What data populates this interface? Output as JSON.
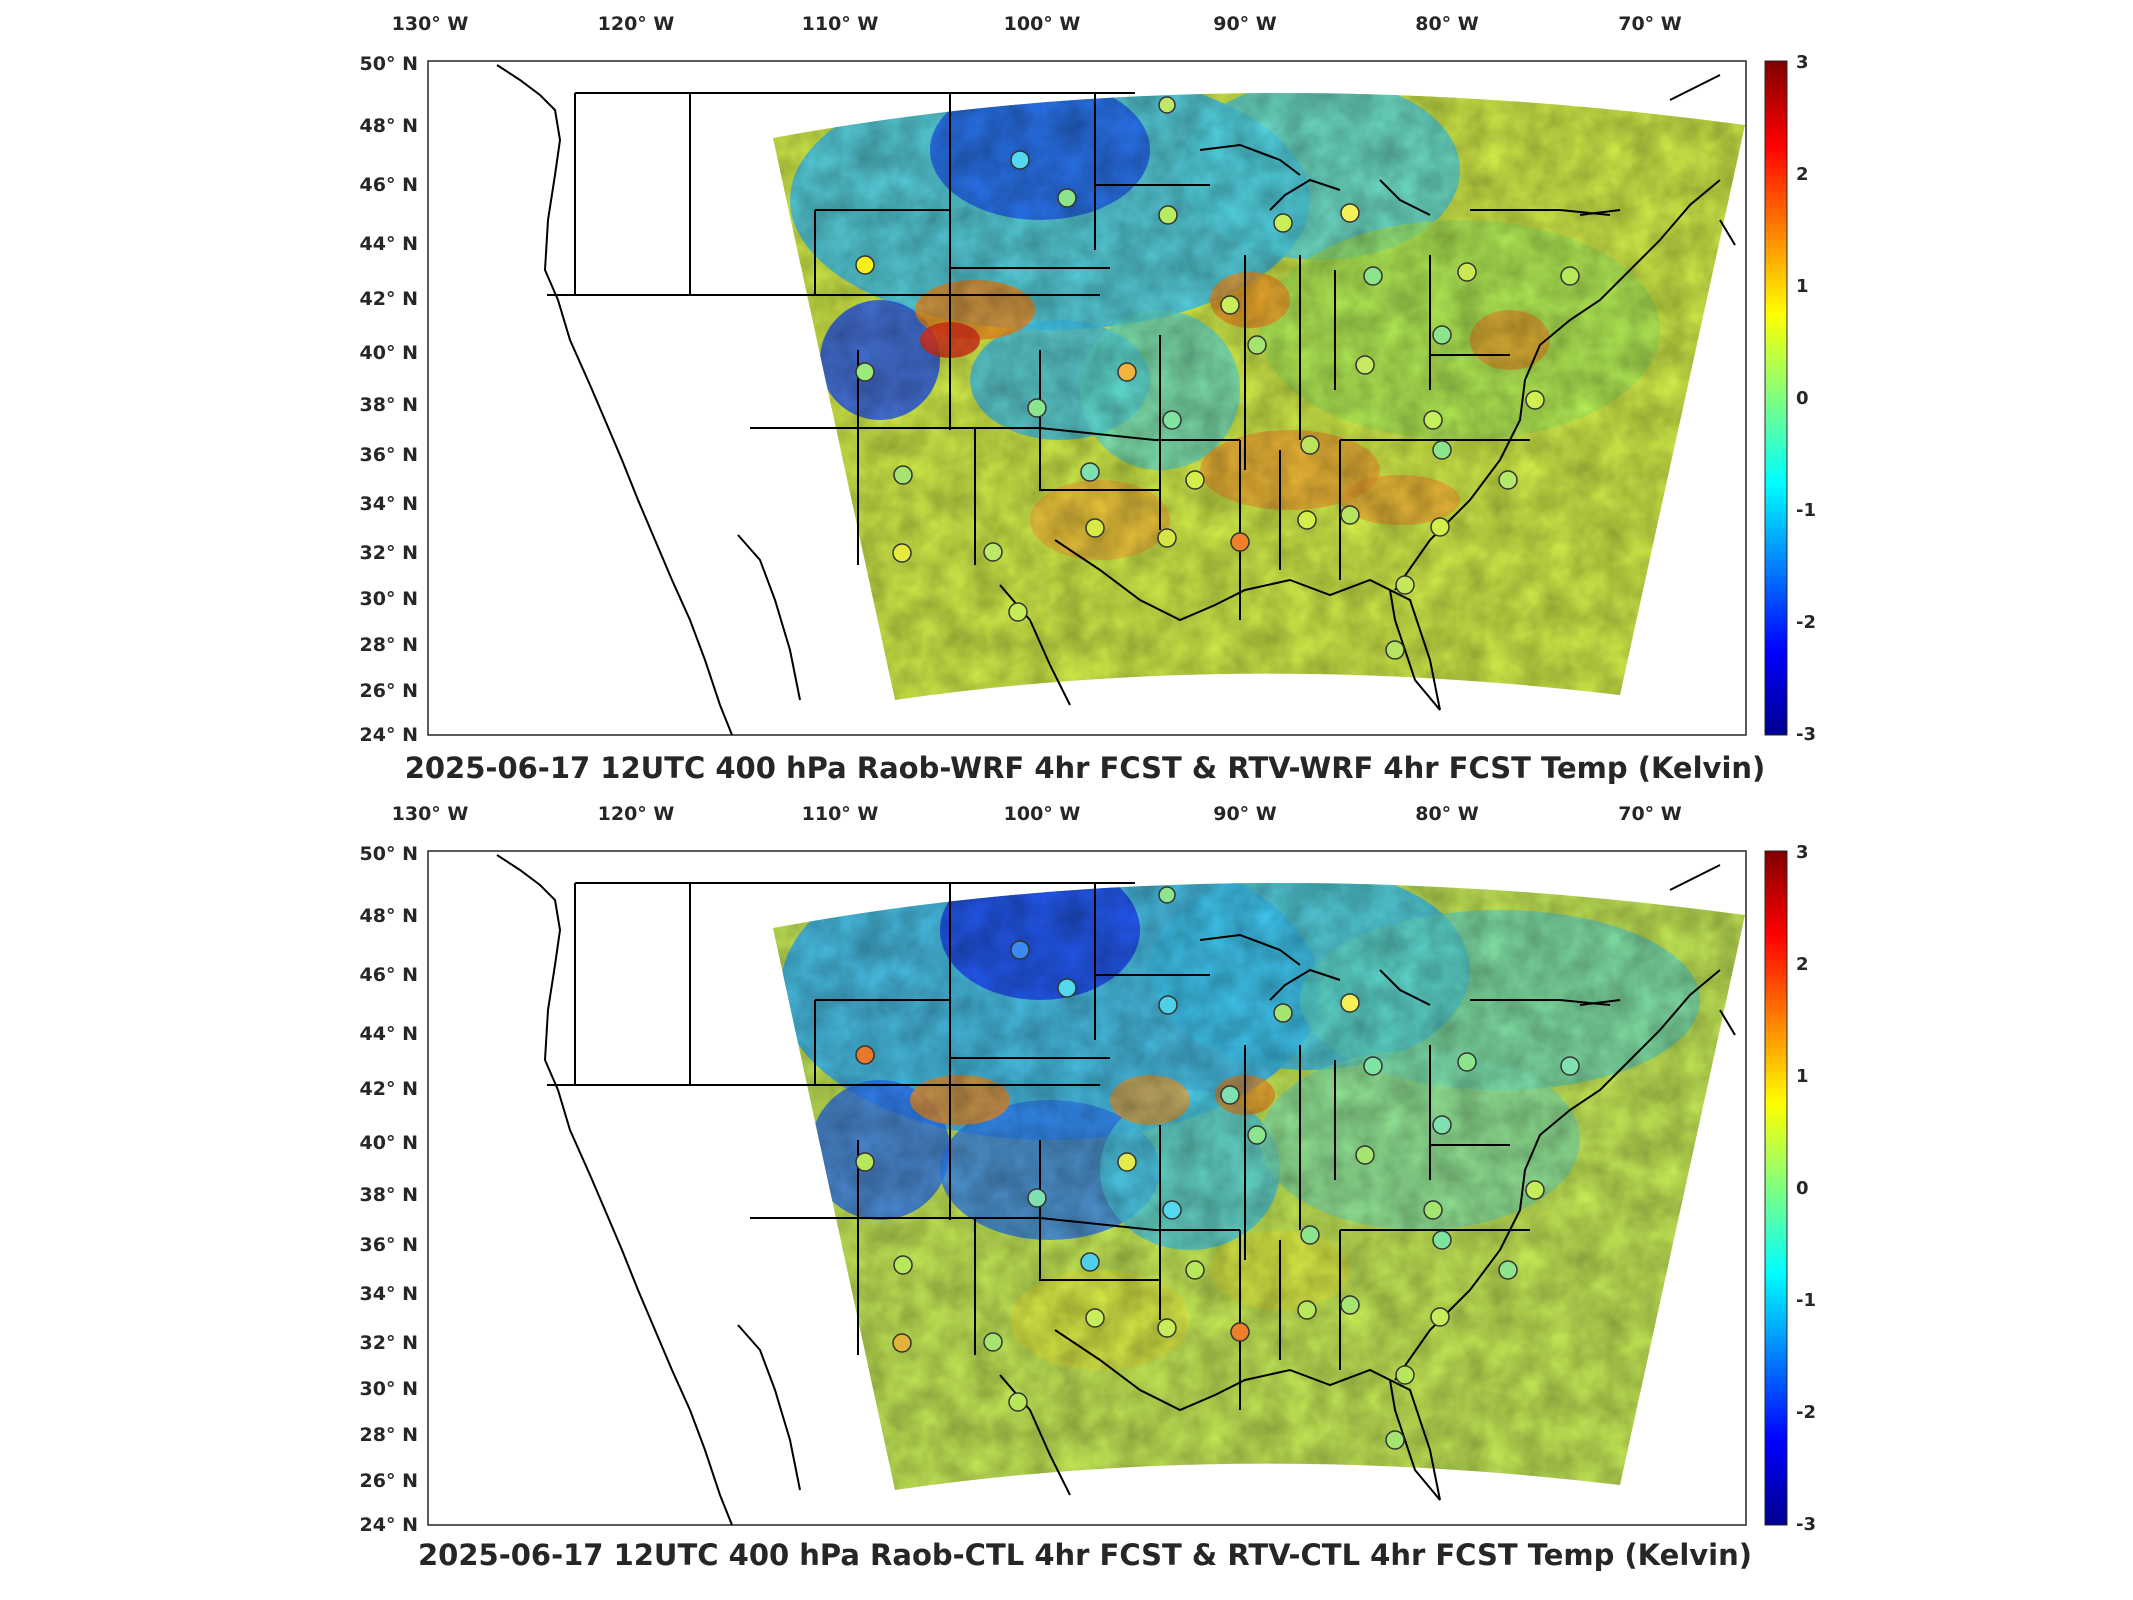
{
  "figure": {
    "panels": [
      {
        "id": "top",
        "title": "2025-06-17 12UTC 400 hPa Raob-WRF 4hr FCST & RTV-WRF 4hr FCST Temp (Kelvin)",
        "lon_ticks": [
          "130° W",
          "120° W",
          "110° W",
          "100° W",
          "90° W",
          "80° W",
          "70° W"
        ],
        "lat_ticks": [
          "50° N",
          "48° N",
          "46° N",
          "44° N",
          "42° N",
          "40° N",
          "38° N",
          "36° N",
          "34° N",
          "32° N",
          "30° N",
          "28° N",
          "26° N",
          "24° N"
        ],
        "colorbar_ticks": [
          "3",
          "2",
          "1",
          "0",
          "-1",
          "-2",
          "-3"
        ],
        "colorbar_range": [
          -3,
          3
        ],
        "units": "Kelvin",
        "variable": "Temp",
        "pressure_level": "400 hPa",
        "valid_time": "2025-06-17 12UTC"
      },
      {
        "id": "bottom",
        "title": "2025-06-17 12UTC 400 hPa Raob-CTL 4hr FCST & RTV-CTL 4hr FCST Temp (Kelvin)",
        "lon_ticks": [
          "130° W",
          "120° W",
          "110° W",
          "100° W",
          "90° W",
          "80° W",
          "70° W"
        ],
        "lat_ticks": [
          "50° N",
          "48° N",
          "46° N",
          "44° N",
          "42° N",
          "40° N",
          "38° N",
          "36° N",
          "34° N",
          "32° N",
          "30° N",
          "28° N",
          "26° N",
          "24° N"
        ],
        "colorbar_ticks": [
          "3",
          "2",
          "1",
          "0",
          "-1",
          "-2",
          "-3"
        ],
        "colorbar_range": [
          -3,
          3
        ],
        "units": "Kelvin",
        "variable": "Temp",
        "pressure_level": "400 hPa",
        "valid_time": "2025-06-17 12UTC"
      }
    ],
    "colormap": {
      "name": "jet",
      "stops": [
        "#00008f",
        "#0000ff",
        "#00ffff",
        "#80ff80",
        "#ffff00",
        "#ff0000",
        "#800000"
      ]
    },
    "map_colors": {
      "outline": "#000000",
      "frame": "#262626",
      "background": "#ffffff"
    }
  }
}
